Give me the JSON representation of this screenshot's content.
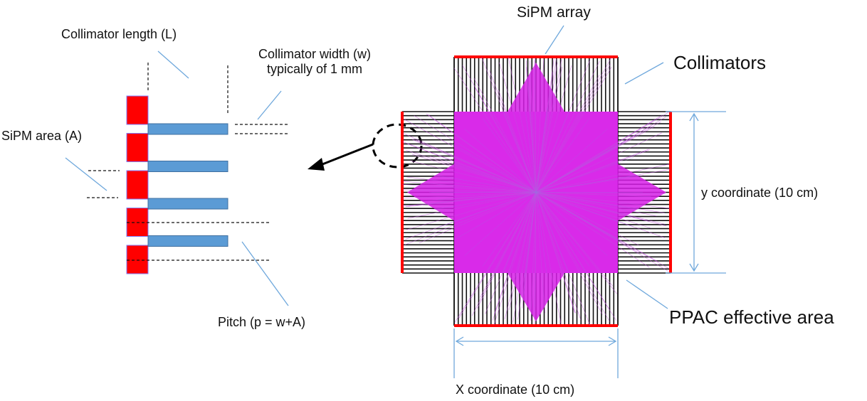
{
  "labels": {
    "collimator_length": "Collimator length (L)",
    "collimator_width_line1": "Collimator width (w)",
    "collimator_width_line2": "typically of 1 mm",
    "sipm_area": "SiPM area (A)",
    "pitch": "Pitch (p = w+A)",
    "sipm_array": "SiPM array",
    "collimators": "Collimators",
    "y_coordinate": "y coordinate (10 cm)",
    "ppac_effective_area": "PPAC effective area",
    "x_coordinate": "X coordinate (10 cm)"
  },
  "colors": {
    "sipm": "#ff0000",
    "collimator_bar": "#5b9bd5",
    "leader_line": "#6fa8dc",
    "simulation_tracks": "#d71fe8",
    "collimator_lines": "#111111"
  },
  "left_schematic": {
    "sipm_count": 5,
    "collimator_count": 4
  },
  "right_array": {
    "collimators_per_side": 40
  }
}
